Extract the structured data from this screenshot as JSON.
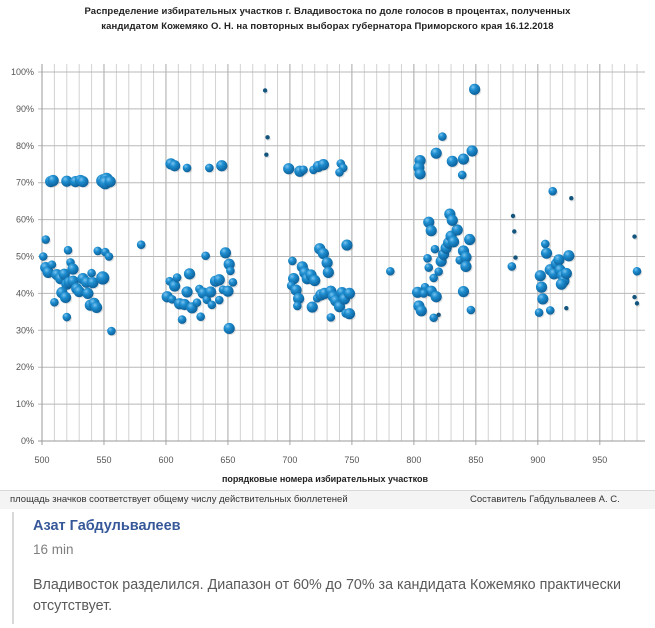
{
  "chart_data": {
    "type": "bubble",
    "title": "Распределение избирательных участков г. Владивостока по доле голосов в процентах, полученных кандидатом Кожемяко О. Н. на повторных выборах губернатора Приморского края 16.12.2018",
    "title_lines": [
      "Распределение избирательных  участков  г. Владивостока  по доле голосов  в процентах,  полученных",
      "кандидатом Кожемяко О. Н. на повторных выборах губернатора Приморского  края 16.12.2018"
    ],
    "xlabel": "порядковые номера избирательных  участков",
    "ylabel": "",
    "xlim": [
      500,
      980
    ],
    "ylim": [
      0,
      100
    ],
    "x_ticks": [
      500,
      550,
      600,
      650,
      700,
      750,
      800,
      850,
      900,
      950
    ],
    "x_tick_labels": [
      "500",
      "550",
      "600",
      "650",
      "700",
      "750",
      "800",
      "850",
      "900",
      "950"
    ],
    "y_ticks": [
      0,
      10,
      20,
      30,
      40,
      50,
      60,
      70,
      80,
      90,
      100
    ],
    "y_tick_labels": [
      "0%",
      "10%",
      "20%",
      "30%",
      "40%",
      "50%",
      "60%",
      "70%",
      "80%",
      "90%",
      "100%"
    ],
    "grid": true,
    "legend": "none",
    "size_note": "площадь значков соответствует общему числу действительных бюллетеней",
    "series_color": "#1a7ec0",
    "points": [
      {
        "x": 507,
        "y": 70.3,
        "s": 3
      },
      {
        "x": 509,
        "y": 70.6,
        "s": 3
      },
      {
        "x": 520,
        "y": 70.4,
        "s": 3
      },
      {
        "x": 527,
        "y": 70.3,
        "s": 3
      },
      {
        "x": 531,
        "y": 70.6,
        "s": 3
      },
      {
        "x": 533,
        "y": 70.3,
        "s": 3
      },
      {
        "x": 549,
        "y": 70.5,
        "s": 4
      },
      {
        "x": 552,
        "y": 70.9,
        "s": 4
      },
      {
        "x": 551,
        "y": 70.0,
        "s": 4
      },
      {
        "x": 555,
        "y": 70.3,
        "s": 3
      },
      {
        "x": 604,
        "y": 75.1,
        "s": 3
      },
      {
        "x": 607,
        "y": 74.6,
        "s": 3
      },
      {
        "x": 617,
        "y": 74.0,
        "s": 2
      },
      {
        "x": 635,
        "y": 74.0,
        "s": 2
      },
      {
        "x": 645,
        "y": 74.6,
        "s": 3
      },
      {
        "x": 680,
        "y": 95.0,
        "s": 1
      },
      {
        "x": 682,
        "y": 82.3,
        "s": 1
      },
      {
        "x": 681,
        "y": 77.6,
        "s": 1
      },
      {
        "x": 699,
        "y": 73.8,
        "s": 3
      },
      {
        "x": 708,
        "y": 73.1,
        "s": 3
      },
      {
        "x": 711,
        "y": 73.5,
        "s": 2
      },
      {
        "x": 719,
        "y": 73.5,
        "s": 2
      },
      {
        "x": 723,
        "y": 74.4,
        "s": 3
      },
      {
        "x": 727,
        "y": 74.9,
        "s": 3
      },
      {
        "x": 741,
        "y": 75.2,
        "s": 2
      },
      {
        "x": 743,
        "y": 74.0,
        "s": 2
      },
      {
        "x": 740,
        "y": 72.8,
        "s": 2
      },
      {
        "x": 805,
        "y": 76.0,
        "s": 3
      },
      {
        "x": 804,
        "y": 74.1,
        "s": 3
      },
      {
        "x": 805,
        "y": 72.4,
        "s": 3
      },
      {
        "x": 818,
        "y": 78.0,
        "s": 3
      },
      {
        "x": 823,
        "y": 82.5,
        "s": 2
      },
      {
        "x": 831,
        "y": 75.8,
        "s": 3
      },
      {
        "x": 840,
        "y": 76.4,
        "s": 3
      },
      {
        "x": 839,
        "y": 72.1,
        "s": 2
      },
      {
        "x": 847,
        "y": 78.6,
        "s": 3
      },
      {
        "x": 849,
        "y": 95.3,
        "s": 3
      },
      {
        "x": 503,
        "y": 54.6,
        "s": 2
      },
      {
        "x": 501,
        "y": 50.0,
        "s": 2
      },
      {
        "x": 503,
        "y": 47.0,
        "s": 3
      },
      {
        "x": 505,
        "y": 45.7,
        "s": 3
      },
      {
        "x": 508,
        "y": 47.8,
        "s": 2
      },
      {
        "x": 512,
        "y": 45.1,
        "s": 3
      },
      {
        "x": 515,
        "y": 44.0,
        "s": 3
      },
      {
        "x": 518,
        "y": 45.2,
        "s": 3
      },
      {
        "x": 520,
        "y": 42.5,
        "s": 3
      },
      {
        "x": 516,
        "y": 40.2,
        "s": 3
      },
      {
        "x": 519,
        "y": 38.9,
        "s": 3
      },
      {
        "x": 522,
        "y": 43.0,
        "s": 3
      },
      {
        "x": 525,
        "y": 43.3,
        "s": 3
      },
      {
        "x": 528,
        "y": 41.3,
        "s": 3
      },
      {
        "x": 530,
        "y": 40.5,
        "s": 3
      },
      {
        "x": 533,
        "y": 44.0,
        "s": 3
      },
      {
        "x": 536,
        "y": 43.0,
        "s": 3
      },
      {
        "x": 537,
        "y": 40.0,
        "s": 3
      },
      {
        "x": 539,
        "y": 36.8,
        "s": 3
      },
      {
        "x": 542,
        "y": 37.3,
        "s": 3
      },
      {
        "x": 544,
        "y": 36.2,
        "s": 3
      },
      {
        "x": 540,
        "y": 45.5,
        "s": 2
      },
      {
        "x": 541,
        "y": 42.9,
        "s": 3
      },
      {
        "x": 549,
        "y": 44.2,
        "s": 4
      },
      {
        "x": 510,
        "y": 37.6,
        "s": 2
      },
      {
        "x": 520,
        "y": 33.6,
        "s": 2
      },
      {
        "x": 521,
        "y": 51.7,
        "s": 2
      },
      {
        "x": 523,
        "y": 48.4,
        "s": 2
      },
      {
        "x": 525,
        "y": 46.6,
        "s": 3
      },
      {
        "x": 545,
        "y": 51.5,
        "s": 2
      },
      {
        "x": 551,
        "y": 51.2,
        "s": 2
      },
      {
        "x": 554,
        "y": 50.0,
        "s": 2
      },
      {
        "x": 556,
        "y": 29.8,
        "s": 2
      },
      {
        "x": 580,
        "y": 53.2,
        "s": 2
      },
      {
        "x": 601,
        "y": 39.1,
        "s": 3
      },
      {
        "x": 603,
        "y": 43.3,
        "s": 2
      },
      {
        "x": 605,
        "y": 38.4,
        "s": 2
      },
      {
        "x": 607,
        "y": 42.0,
        "s": 3
      },
      {
        "x": 609,
        "y": 44.3,
        "s": 2
      },
      {
        "x": 611,
        "y": 37.2,
        "s": 3
      },
      {
        "x": 613,
        "y": 32.9,
        "s": 2
      },
      {
        "x": 615,
        "y": 37.0,
        "s": 3
      },
      {
        "x": 617,
        "y": 40.4,
        "s": 3
      },
      {
        "x": 619,
        "y": 45.3,
        "s": 3
      },
      {
        "x": 621,
        "y": 36.1,
        "s": 3
      },
      {
        "x": 625,
        "y": 37.5,
        "s": 2
      },
      {
        "x": 627,
        "y": 41.2,
        "s": 2
      },
      {
        "x": 628,
        "y": 33.7,
        "s": 2
      },
      {
        "x": 630,
        "y": 40.1,
        "s": 3
      },
      {
        "x": 632,
        "y": 50.2,
        "s": 2
      },
      {
        "x": 633,
        "y": 38.3,
        "s": 2
      },
      {
        "x": 636,
        "y": 40.4,
        "s": 3
      },
      {
        "x": 637,
        "y": 36.9,
        "s": 2
      },
      {
        "x": 640,
        "y": 43.3,
        "s": 3
      },
      {
        "x": 643,
        "y": 43.7,
        "s": 3
      },
      {
        "x": 643,
        "y": 38.2,
        "s": 2
      },
      {
        "x": 646,
        "y": 41.0,
        "s": 2
      },
      {
        "x": 648,
        "y": 51.0,
        "s": 3
      },
      {
        "x": 650,
        "y": 40.6,
        "s": 3
      },
      {
        "x": 651,
        "y": 47.9,
        "s": 3
      },
      {
        "x": 652,
        "y": 46.1,
        "s": 2
      },
      {
        "x": 654,
        "y": 43.0,
        "s": 2
      },
      {
        "x": 651,
        "y": 30.5,
        "s": 3
      },
      {
        "x": 702,
        "y": 48.8,
        "s": 2
      },
      {
        "x": 703,
        "y": 44.0,
        "s": 3
      },
      {
        "x": 701,
        "y": 42.1,
        "s": 2
      },
      {
        "x": 705,
        "y": 40.9,
        "s": 3
      },
      {
        "x": 707,
        "y": 38.6,
        "s": 3
      },
      {
        "x": 706,
        "y": 36.6,
        "s": 2
      },
      {
        "x": 710,
        "y": 47.2,
        "s": 3
      },
      {
        "x": 712,
        "y": 45.6,
        "s": 3
      },
      {
        "x": 714,
        "y": 44.0,
        "s": 3
      },
      {
        "x": 717,
        "y": 45.0,
        "s": 3
      },
      {
        "x": 720,
        "y": 43.5,
        "s": 3
      },
      {
        "x": 718,
        "y": 36.3,
        "s": 3
      },
      {
        "x": 722,
        "y": 38.7,
        "s": 2
      },
      {
        "x": 725,
        "y": 39.6,
        "s": 3
      },
      {
        "x": 728,
        "y": 40.0,
        "s": 3
      },
      {
        "x": 724,
        "y": 52.1,
        "s": 3
      },
      {
        "x": 727,
        "y": 50.8,
        "s": 3
      },
      {
        "x": 730,
        "y": 48.3,
        "s": 3
      },
      {
        "x": 731,
        "y": 45.7,
        "s": 3
      },
      {
        "x": 733,
        "y": 40.6,
        "s": 3
      },
      {
        "x": 735,
        "y": 39.1,
        "s": 3
      },
      {
        "x": 737,
        "y": 38.0,
        "s": 3
      },
      {
        "x": 740,
        "y": 36.4,
        "s": 3
      },
      {
        "x": 742,
        "y": 40.2,
        "s": 3
      },
      {
        "x": 744,
        "y": 38.5,
        "s": 3
      },
      {
        "x": 746,
        "y": 53.1,
        "s": 3
      },
      {
        "x": 745,
        "y": 34.6,
        "s": 2
      },
      {
        "x": 748,
        "y": 40.0,
        "s": 3
      },
      {
        "x": 748,
        "y": 34.5,
        "s": 3
      },
      {
        "x": 733,
        "y": 33.5,
        "s": 2
      },
      {
        "x": 781,
        "y": 46.0,
        "s": 2
      },
      {
        "x": 803,
        "y": 40.3,
        "s": 3
      },
      {
        "x": 804,
        "y": 36.6,
        "s": 3
      },
      {
        "x": 806,
        "y": 35.3,
        "s": 3
      },
      {
        "x": 809,
        "y": 41.7,
        "s": 2
      },
      {
        "x": 812,
        "y": 47.0,
        "s": 2
      },
      {
        "x": 811,
        "y": 49.5,
        "s": 2
      },
      {
        "x": 814,
        "y": 40.6,
        "s": 3
      },
      {
        "x": 816,
        "y": 33.4,
        "s": 2
      },
      {
        "x": 818,
        "y": 39.1,
        "s": 3
      },
      {
        "x": 816,
        "y": 44.2,
        "s": 2
      },
      {
        "x": 820,
        "y": 45.9,
        "s": 2
      },
      {
        "x": 822,
        "y": 48.7,
        "s": 3
      },
      {
        "x": 824,
        "y": 50.6,
        "s": 3
      },
      {
        "x": 826,
        "y": 52.3,
        "s": 3
      },
      {
        "x": 828,
        "y": 53.7,
        "s": 3
      },
      {
        "x": 830,
        "y": 55.5,
        "s": 3
      },
      {
        "x": 832,
        "y": 54.0,
        "s": 3
      },
      {
        "x": 835,
        "y": 57.2,
        "s": 3
      },
      {
        "x": 829,
        "y": 61.5,
        "s": 3
      },
      {
        "x": 831,
        "y": 59.8,
        "s": 3
      },
      {
        "x": 812,
        "y": 59.3,
        "s": 3
      },
      {
        "x": 814,
        "y": 57.0,
        "s": 3
      },
      {
        "x": 837,
        "y": 49.0,
        "s": 2
      },
      {
        "x": 840,
        "y": 51.5,
        "s": 3
      },
      {
        "x": 842,
        "y": 49.8,
        "s": 3
      },
      {
        "x": 842,
        "y": 47.3,
        "s": 3
      },
      {
        "x": 845,
        "y": 54.6,
        "s": 3
      },
      {
        "x": 846,
        "y": 35.5,
        "s": 2
      },
      {
        "x": 840,
        "y": 40.5,
        "s": 3
      },
      {
        "x": 820,
        "y": 34.2,
        "s": 1
      },
      {
        "x": 808,
        "y": 40.0,
        "s": 2
      },
      {
        "x": 817,
        "y": 52.0,
        "s": 2
      },
      {
        "x": 880,
        "y": 61.0,
        "s": 1
      },
      {
        "x": 881,
        "y": 56.8,
        "s": 1
      },
      {
        "x": 882,
        "y": 49.7,
        "s": 1
      },
      {
        "x": 879,
        "y": 47.3,
        "s": 2
      },
      {
        "x": 902,
        "y": 44.8,
        "s": 3
      },
      {
        "x": 901,
        "y": 34.8,
        "s": 2
      },
      {
        "x": 903,
        "y": 41.7,
        "s": 3
      },
      {
        "x": 904,
        "y": 38.5,
        "s": 3
      },
      {
        "x": 906,
        "y": 53.4,
        "s": 2
      },
      {
        "x": 907,
        "y": 50.9,
        "s": 3
      },
      {
        "x": 910,
        "y": 35.4,
        "s": 2
      },
      {
        "x": 912,
        "y": 67.7,
        "s": 2
      },
      {
        "x": 910,
        "y": 46.4,
        "s": 3
      },
      {
        "x": 913,
        "y": 45.3,
        "s": 3
      },
      {
        "x": 915,
        "y": 48.0,
        "s": 3
      },
      {
        "x": 917,
        "y": 49.1,
        "s": 3
      },
      {
        "x": 918,
        "y": 46.3,
        "s": 3
      },
      {
        "x": 920,
        "y": 44.8,
        "s": 3
      },
      {
        "x": 921,
        "y": 43.4,
        "s": 3
      },
      {
        "x": 919,
        "y": 42.5,
        "s": 3
      },
      {
        "x": 923,
        "y": 45.4,
        "s": 3
      },
      {
        "x": 923,
        "y": 36.0,
        "s": 1
      },
      {
        "x": 925,
        "y": 50.2,
        "s": 3
      },
      {
        "x": 927,
        "y": 65.8,
        "s": 1
      },
      {
        "x": 978,
        "y": 55.4,
        "s": 1
      },
      {
        "x": 980,
        "y": 46.0,
        "s": 2
      },
      {
        "x": 978,
        "y": 39.0,
        "s": 1
      },
      {
        "x": 980,
        "y": 37.3,
        "s": 1
      }
    ]
  },
  "footer": {
    "note": "площадь значков соответствует общему числу действительных бюллетеней",
    "author_credit": "Составитель Габдульвалеев А. С."
  },
  "post": {
    "author": "Азат Габдульвалеев",
    "time": "16 min",
    "text": "Владивосток разделился. Диапазон от 60% до 70% за кандидата Кожемяко практически отсутствует."
  }
}
